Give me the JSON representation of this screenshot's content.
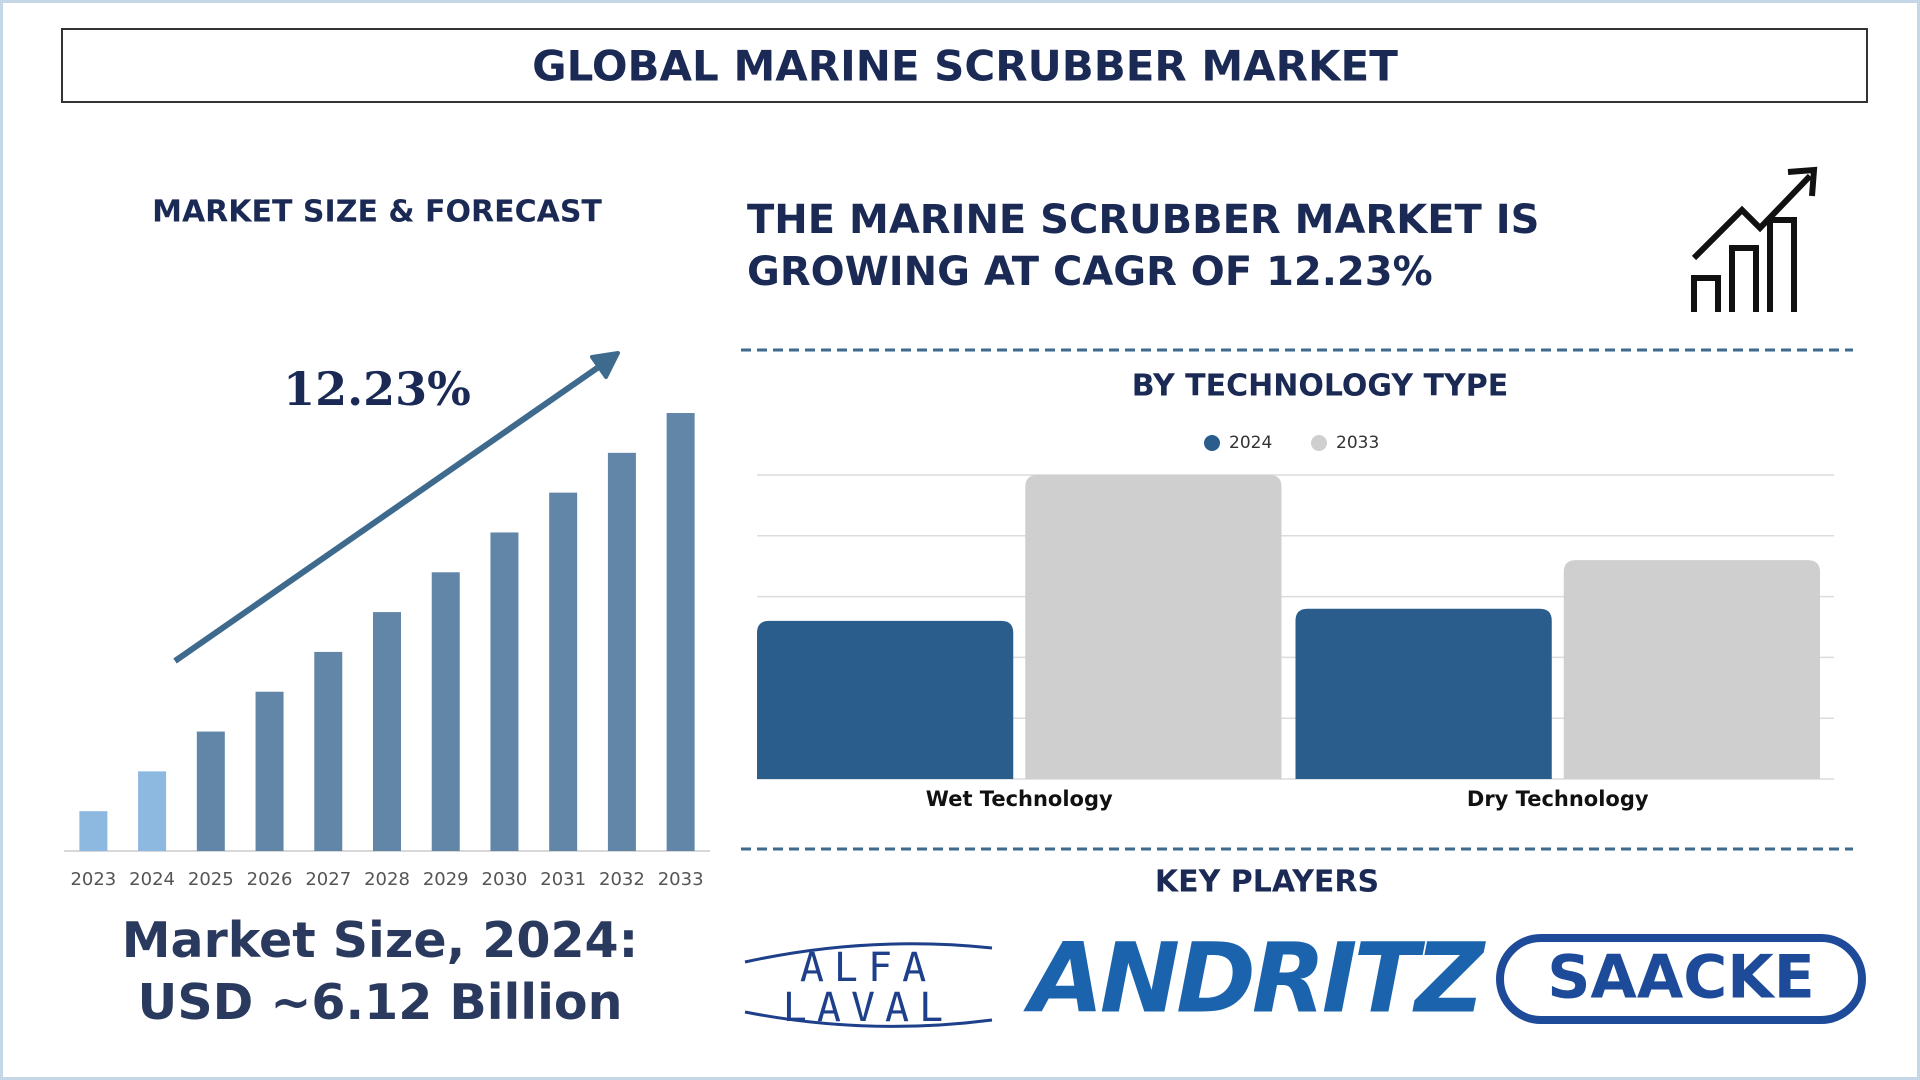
{
  "title": "GLOBAL MARINE SCRUBBER  MARKET",
  "chart_data": [
    {
      "type": "bar",
      "title": "MARKET SIZE & FORECAST",
      "annotation": "12.23%",
      "categories": [
        "2023",
        "2024",
        "2025",
        "2026",
        "2027",
        "2028",
        "2029",
        "2030",
        "2031",
        "2032",
        "2033"
      ],
      "values": [
        1,
        2,
        3,
        4,
        5,
        6,
        7,
        8,
        9,
        10,
        11
      ],
      "colors": [
        "#8db8e0",
        "#8db8e0",
        "#6286a8",
        "#6286a8",
        "#6286a8",
        "#6286a8",
        "#6286a8",
        "#6286a8",
        "#6286a8",
        "#6286a8",
        "#6286a8"
      ]
    },
    {
      "type": "bar",
      "title": "BY TECHNOLOGY TYPE",
      "categories": [
        "Wet Technology",
        "Dry Technology"
      ],
      "series": [
        {
          "name": "2024",
          "color": "#2a5d8c",
          "values": [
            2.6,
            2.8
          ]
        },
        {
          "name": "2033",
          "color": "#cfcfcf",
          "values": [
            5.0,
            3.6
          ]
        }
      ],
      "ylim": [
        0,
        5
      ],
      "yticks": [
        0,
        1,
        2,
        3,
        4,
        5
      ],
      "grid": true,
      "show_tick_labels": false
    }
  ],
  "headline": "THE MARINE SCRUBBER MARKET IS GROWING AT CAGR OF 12.23%",
  "market_size": "Market Size, 2024: USD ~6.12 Billion",
  "key_players": {
    "title": "KEY PLAYERS",
    "names": [
      "ALFA LAVAL",
      "ANDRITZ",
      "SAACKE"
    ]
  }
}
